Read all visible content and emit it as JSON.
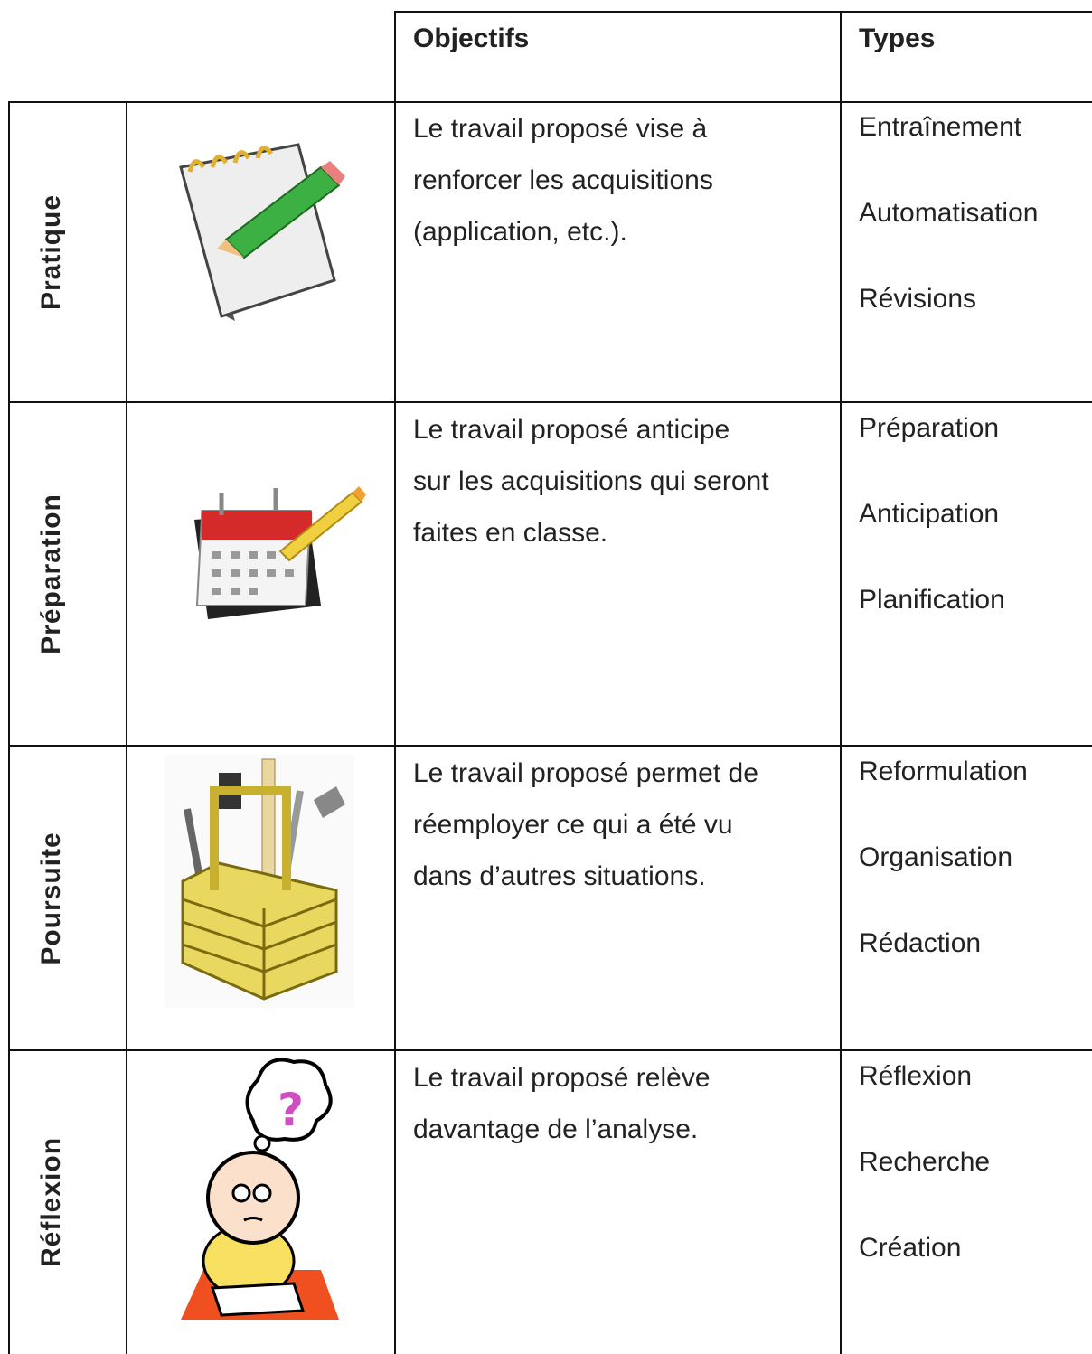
{
  "header": {
    "objectives": "Objectifs",
    "types": "Types"
  },
  "rows": [
    {
      "label": "Pratique",
      "objective": [
        "Le travail proposé vise à",
        "renforcer les acquisitions",
        "(application, etc.)."
      ],
      "types": [
        "Entraînement",
        "Automatisation",
        "Révisions"
      ]
    },
    {
      "label": "Préparation",
      "objective": [
        "Le travail proposé anticipe",
        "sur les acquisitions qui seront",
        "faites en classe."
      ],
      "types": [
        "Préparation",
        "Anticipation",
        "Planification"
      ]
    },
    {
      "label": "Poursuite",
      "objective": [
        "Le travail proposé permet de",
        "réemployer ce qui a été vu",
        "dans d’autres situations."
      ],
      "types": [
        "Reformulation",
        "Organisation",
        "Rédaction"
      ]
    },
    {
      "label": "Réflexion",
      "objective": [
        "Le travail proposé relève",
        "davantage de l’analyse."
      ],
      "types": [
        "Réflexion",
        "Recherche",
        "Création"
      ]
    }
  ]
}
